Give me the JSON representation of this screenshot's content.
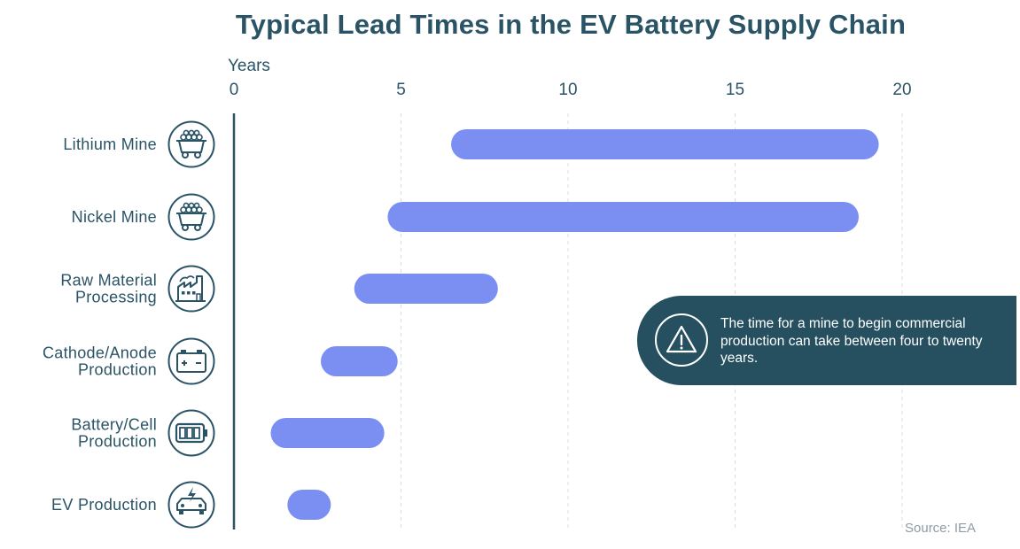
{
  "chart_data": {
    "type": "bar",
    "orientation": "horizontal",
    "title": "Typical Lead Times in the EV Battery Supply Chain",
    "xlabel": "Years",
    "xlim": [
      0,
      20
    ],
    "xticks": [
      0,
      5,
      10,
      15,
      20
    ],
    "grid": "vertical-dashed",
    "bar_color": "#7b8ff3",
    "categories": [
      {
        "label_lines": [
          "Lithium Mine"
        ],
        "icon": "mine-cart-icon",
        "start": 6.5,
        "end": 19.3
      },
      {
        "label_lines": [
          "Nickel Mine"
        ],
        "icon": "mine-cart-icon",
        "start": 4.6,
        "end": 18.7
      },
      {
        "label_lines": [
          "Raw Material",
          "Processing"
        ],
        "icon": "factory-icon",
        "start": 3.6,
        "end": 7.9
      },
      {
        "label_lines": [
          "Cathode/Anode",
          "Production"
        ],
        "icon": "car-battery-icon",
        "start": 2.6,
        "end": 4.9
      },
      {
        "label_lines": [
          "Battery/Cell",
          "Production"
        ],
        "icon": "battery-cell-icon",
        "start": 1.1,
        "end": 4.5
      },
      {
        "label_lines": [
          "EV Production"
        ],
        "icon": "electric-car-icon",
        "start": 1.6,
        "end": 2.9
      }
    ]
  },
  "callout": {
    "text": "The time for a mine to begin commercial production can take between four to twenty years.",
    "icon": "warning-icon",
    "color": "#26505f"
  },
  "source": "Source: IEA",
  "colors": {
    "title": "#2a5466",
    "icon_stroke": "#2a5466",
    "bar": "#7b8ff3"
  }
}
